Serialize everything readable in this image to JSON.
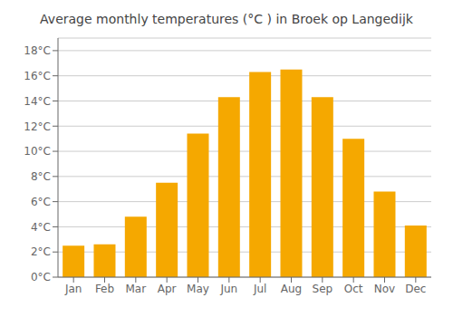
{
  "chart_data": {
    "type": "bar",
    "title": "Average monthly temperatures (°C ) in Broek op Langedijk",
    "categories": [
      "Jan",
      "Feb",
      "Mar",
      "Apr",
      "May",
      "Jun",
      "Jul",
      "Aug",
      "Sep",
      "Oct",
      "Nov",
      "Dec"
    ],
    "values": [
      2.5,
      2.6,
      4.8,
      7.5,
      11.4,
      14.3,
      16.3,
      16.5,
      14.3,
      11.0,
      6.8,
      4.1
    ],
    "color": "#F5A800",
    "ylim": [
      0,
      19
    ],
    "yticks": [
      {
        "value": 0,
        "label": "0°C"
      },
      {
        "value": 2,
        "label": "2°C"
      },
      {
        "value": 4,
        "label": "4°C"
      },
      {
        "value": 6,
        "label": "6°C"
      },
      {
        "value": 8,
        "label": "8°C"
      },
      {
        "value": 10,
        "label": "10°C"
      },
      {
        "value": 12,
        "label": "12°C"
      },
      {
        "value": 14,
        "label": "14°C"
      },
      {
        "value": 16,
        "label": "16°C"
      },
      {
        "value": 18,
        "label": "18°C"
      }
    ],
    "grid": true
  }
}
